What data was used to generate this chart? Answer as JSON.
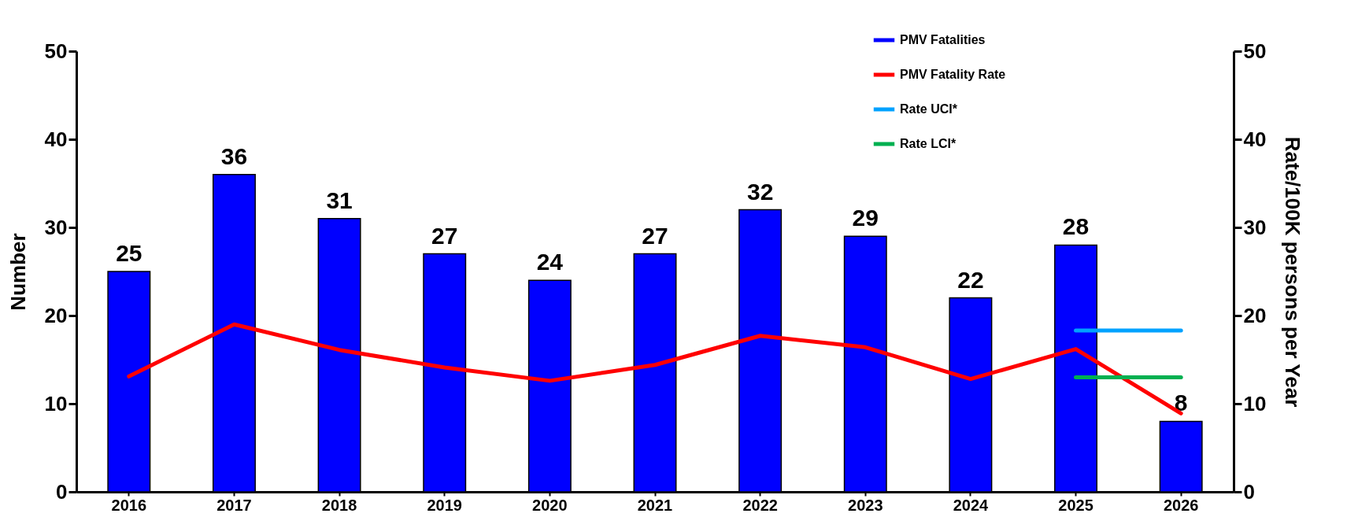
{
  "chart_data": {
    "type": "bar",
    "categories": [
      "2016",
      "2017",
      "2018",
      "2019",
      "2020",
      "2021",
      "2022",
      "2023",
      "2024",
      "2025",
      "2026"
    ],
    "series": [
      {
        "name": "PMV Fatalities",
        "color": "#0000ff",
        "values": [
          25,
          36,
          31,
          27,
          24,
          27,
          32,
          29,
          22,
          28,
          8
        ],
        "value_labels": [
          "25",
          "36",
          "31",
          "27",
          "24",
          "27",
          "32",
          "29",
          "22",
          "28",
          "8"
        ]
      },
      {
        "name": "PMV Fatality Rate",
        "type": "line",
        "axis": "y2",
        "color": "#ff0000",
        "values": [
          13.1,
          19.0,
          16.1,
          14.1,
          12.6,
          14.4,
          17.7,
          16.4,
          12.8,
          16.2,
          8.9
        ]
      },
      {
        "name": "Rate UCI*",
        "type": "line",
        "axis": "y2",
        "color": "#00a2ff",
        "values": [
          null,
          null,
          null,
          null,
          null,
          null,
          null,
          null,
          null,
          18.3,
          18.3
        ]
      },
      {
        "name": "Rate LCI*",
        "type": "line",
        "axis": "y2",
        "color": "#00b050",
        "values": [
          null,
          null,
          null,
          null,
          null,
          null,
          null,
          null,
          null,
          13.0,
          13.0
        ]
      }
    ],
    "ylabel": "Number",
    "y2label": "Rate/100K persons per Year",
    "ylim": [
      0,
      50
    ],
    "yticks": [
      0,
      10,
      20,
      30,
      40,
      50
    ],
    "y2lim": [
      0,
      50
    ],
    "y2ticks": [
      0,
      10,
      20,
      30,
      40,
      50
    ],
    "grid": false,
    "legend": "top",
    "line_style": "solid",
    "marker": "none"
  }
}
